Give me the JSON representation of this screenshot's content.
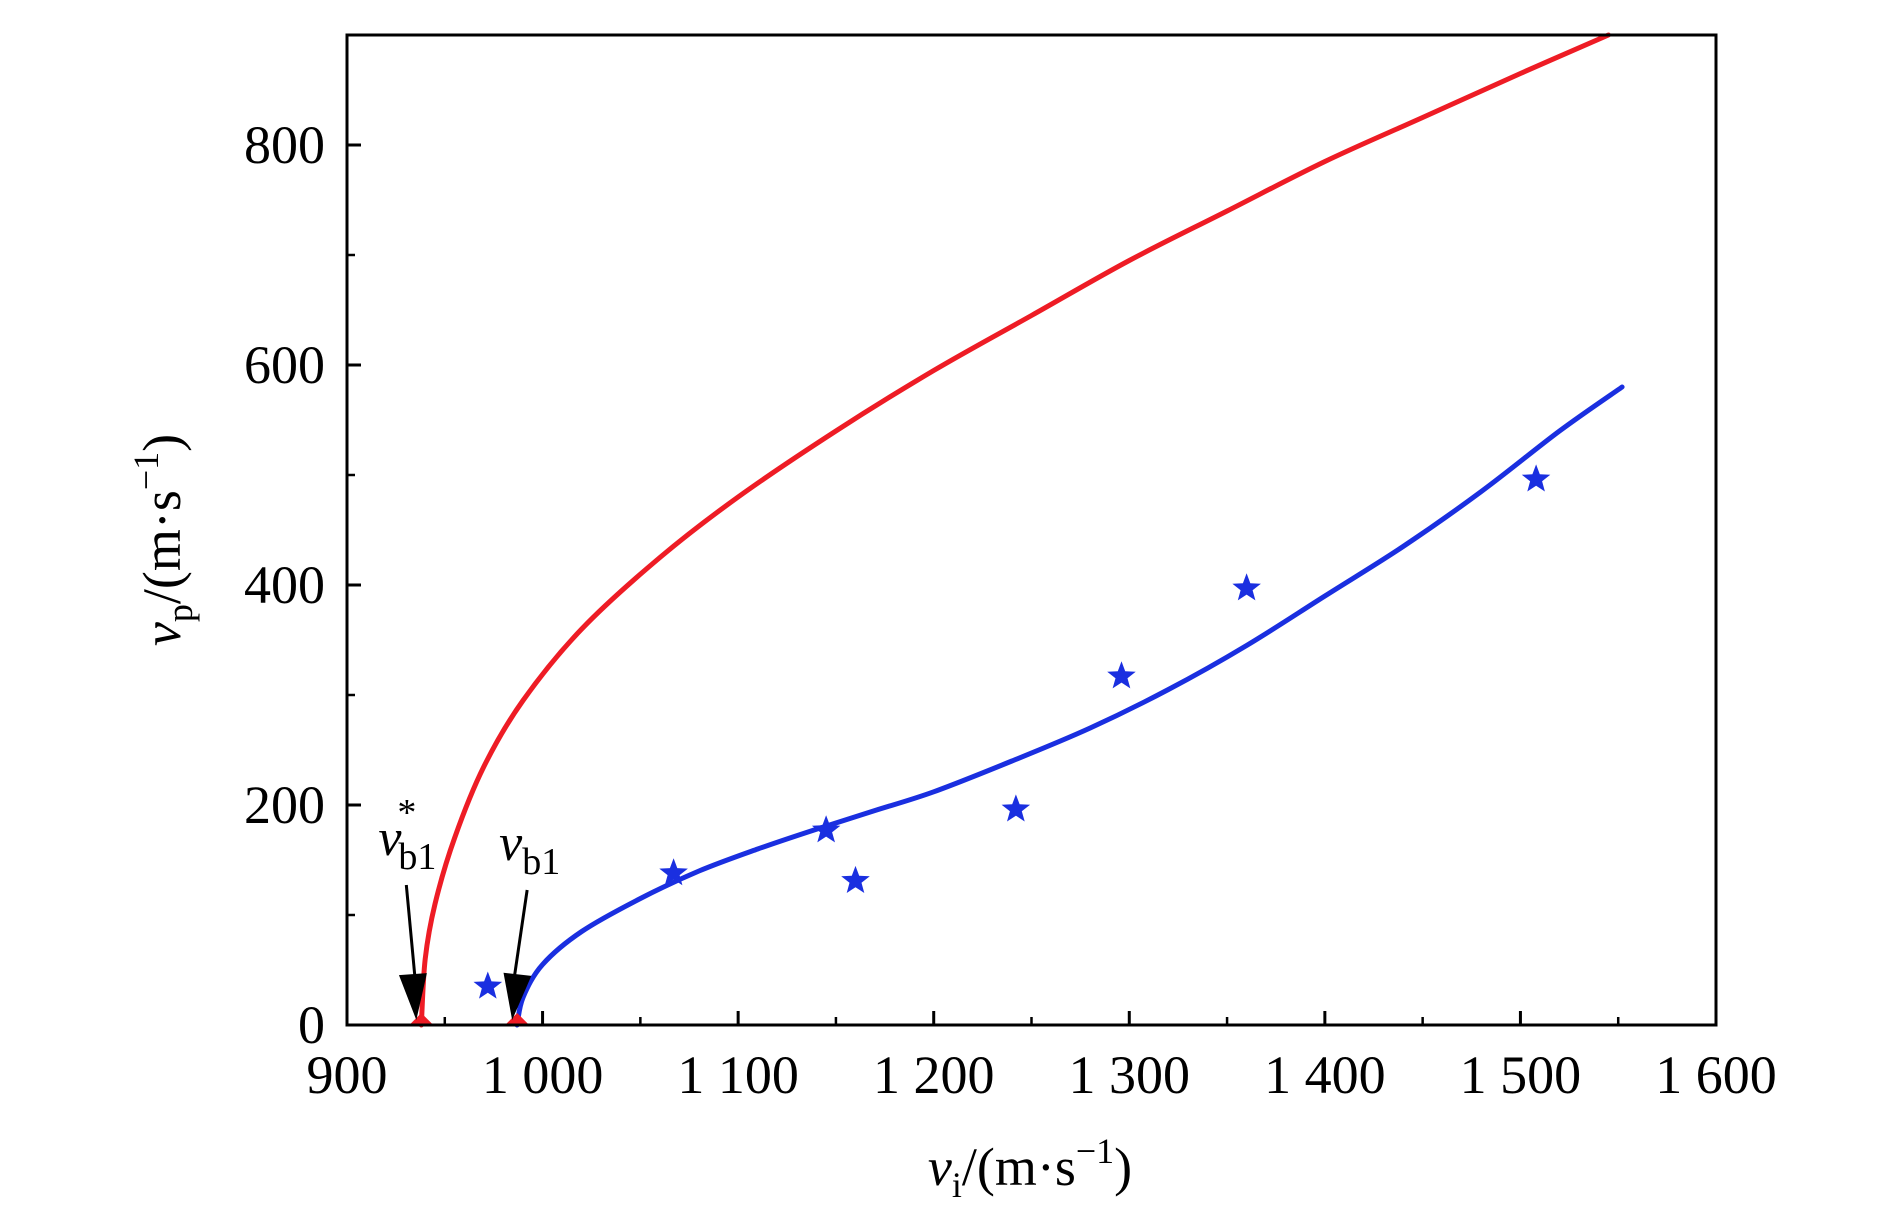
{
  "chart_data": {
    "type": "line",
    "title": "",
    "xlabel": {
      "var": "v",
      "sub": "i",
      "unit": "/(m·s",
      "exp": "−1",
      "close": ")"
    },
    "ylabel": {
      "var": "v",
      "sub": "p",
      "unit": "/(m·s",
      "exp": "−1",
      "close": ")"
    },
    "xlim": [
      900,
      1600
    ],
    "ylim": [
      0,
      900
    ],
    "xticks": [
      900,
      1000,
      1100,
      1200,
      1300,
      1400,
      1500,
      1600
    ],
    "xtick_labels": [
      "900",
      "1 000",
      "1 100",
      "1 200",
      "1 300",
      "1 400",
      "1 500",
      "1 600"
    ],
    "yticks": [
      0,
      200,
      400,
      600,
      800
    ],
    "ytick_labels": [
      "0",
      "200",
      "400",
      "600",
      "800"
    ],
    "grid": false,
    "series": [
      {
        "color": "#ee1c25",
        "kind": "line",
        "x": [
          938,
          940,
          945,
          955,
          970,
          990,
          1020,
          1060,
          1100,
          1150,
          1200,
          1250,
          1300,
          1350,
          1400,
          1450,
          1500,
          1545
        ],
        "y": [
          0,
          60,
          110,
          170,
          235,
          295,
          360,
          425,
          480,
          540,
          595,
          645,
          695,
          740,
          785,
          825,
          865,
          900
        ]
      },
      {
        "color": "#1a2fe0",
        "kind": "line",
        "x": [
          987,
          990,
          1000,
          1020,
          1050,
          1080,
          1110,
          1140,
          1170,
          1200,
          1240,
          1280,
          1320,
          1360,
          1400,
          1440,
          1480,
          1520,
          1552
        ],
        "y": [
          0,
          25,
          55,
          85,
          115,
          140,
          160,
          178,
          195,
          212,
          240,
          270,
          305,
          345,
          390,
          435,
          485,
          540,
          580
        ]
      },
      {
        "color": "#1a2fe0",
        "kind": "scatter",
        "marker": "star",
        "x": [
          972,
          1067,
          1145,
          1160,
          1242,
          1296,
          1360,
          1508
        ],
        "y": [
          35,
          138,
          177,
          131,
          196,
          317,
          397,
          496
        ]
      },
      {
        "color": "#ee1c25",
        "kind": "scatter",
        "marker": "triangle",
        "x": [
          938,
          987
        ],
        "y": [
          0,
          0
        ]
      }
    ],
    "annotations": [
      {
        "var": "v",
        "sub": "b1",
        "sup": "*",
        "x": 938,
        "y": 0
      },
      {
        "var": "v",
        "sub": "b1",
        "sup": "",
        "x": 987,
        "y": 0
      }
    ]
  }
}
